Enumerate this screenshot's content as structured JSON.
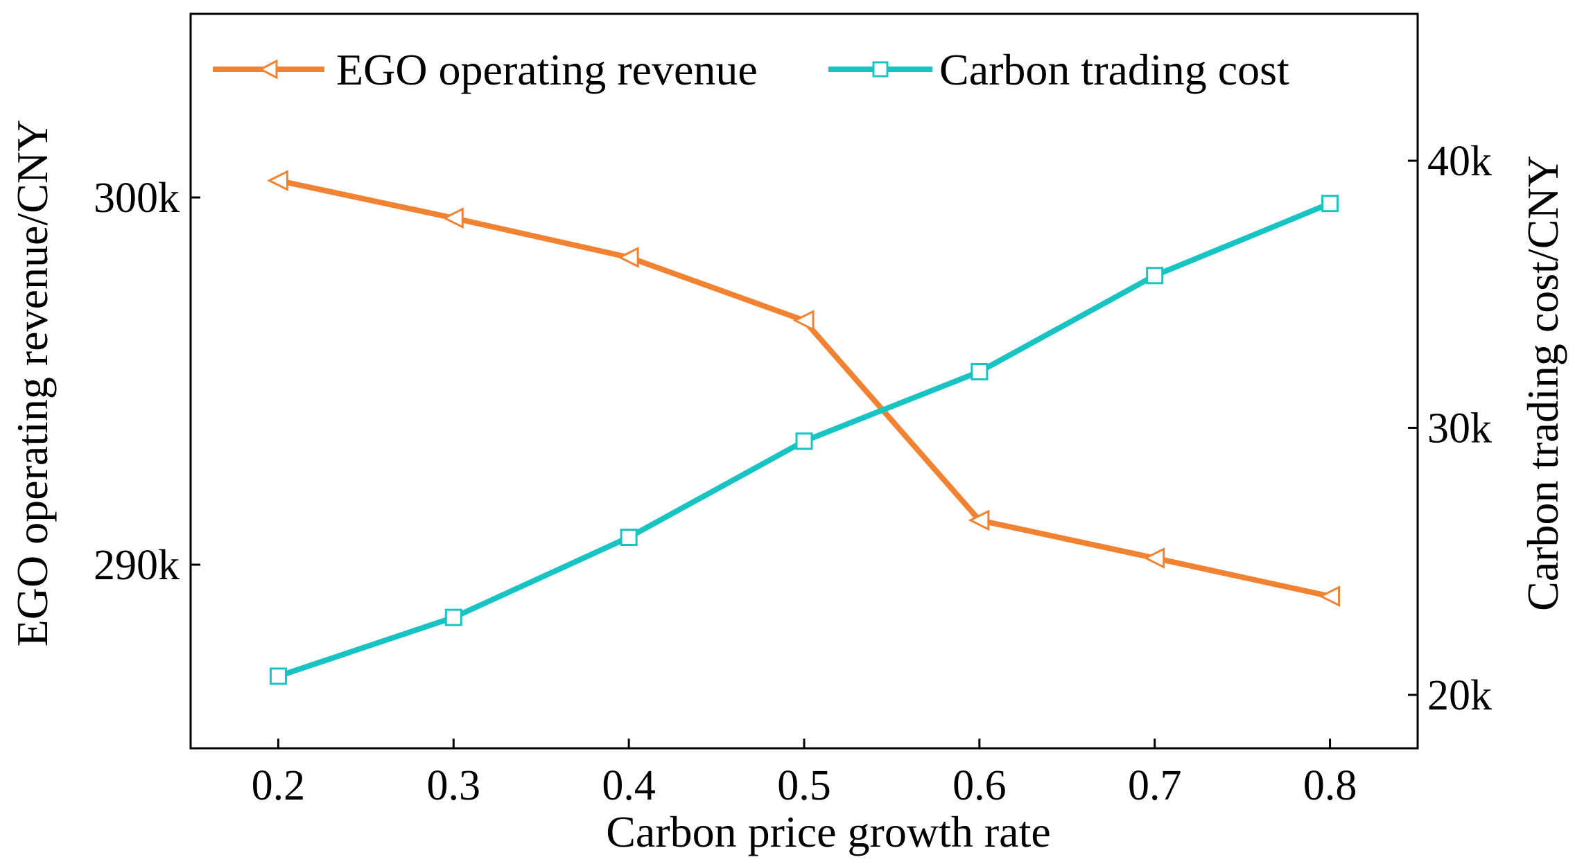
{
  "chart_data": {
    "type": "line",
    "title": "",
    "xlabel": "Carbon price growth rate",
    "ylabel_left": "EGO operating revenue/CNY",
    "ylabel_right": "Carbon trading cost/CNY",
    "x": [
      0.2,
      0.3,
      0.4,
      0.5,
      0.6,
      0.7,
      0.8
    ],
    "x_tick_labels": [
      "0.2",
      "0.3",
      "0.4",
      "0.5",
      "0.6",
      "0.7",
      "0.8"
    ],
    "xlim": [
      0.15,
      0.85
    ],
    "y_left_ticks": [
      290000,
      300000
    ],
    "y_left_tick_labels": [
      "290k",
      "300k"
    ],
    "ylim_left": [
      285000,
      305000
    ],
    "y_right_ticks": [
      20000,
      30000,
      40000
    ],
    "y_right_tick_labels": [
      "20k",
      "30k",
      "40k"
    ],
    "ylim_right": [
      18000,
      45500
    ],
    "legend_position": "top",
    "series": [
      {
        "name": "EGO operating revenue",
        "axis": "left",
        "color": "#f08232",
        "marker": "triangle-left",
        "values": [
          300460,
          299440,
          298370,
          296650,
          291210,
          290180,
          289140
        ]
      },
      {
        "name": "Carbon trading cost",
        "axis": "right",
        "color": "#17c3c3",
        "marker": "square",
        "values": [
          20700,
          22900,
          25900,
          29500,
          32100,
          35700,
          38400
        ]
      }
    ]
  }
}
